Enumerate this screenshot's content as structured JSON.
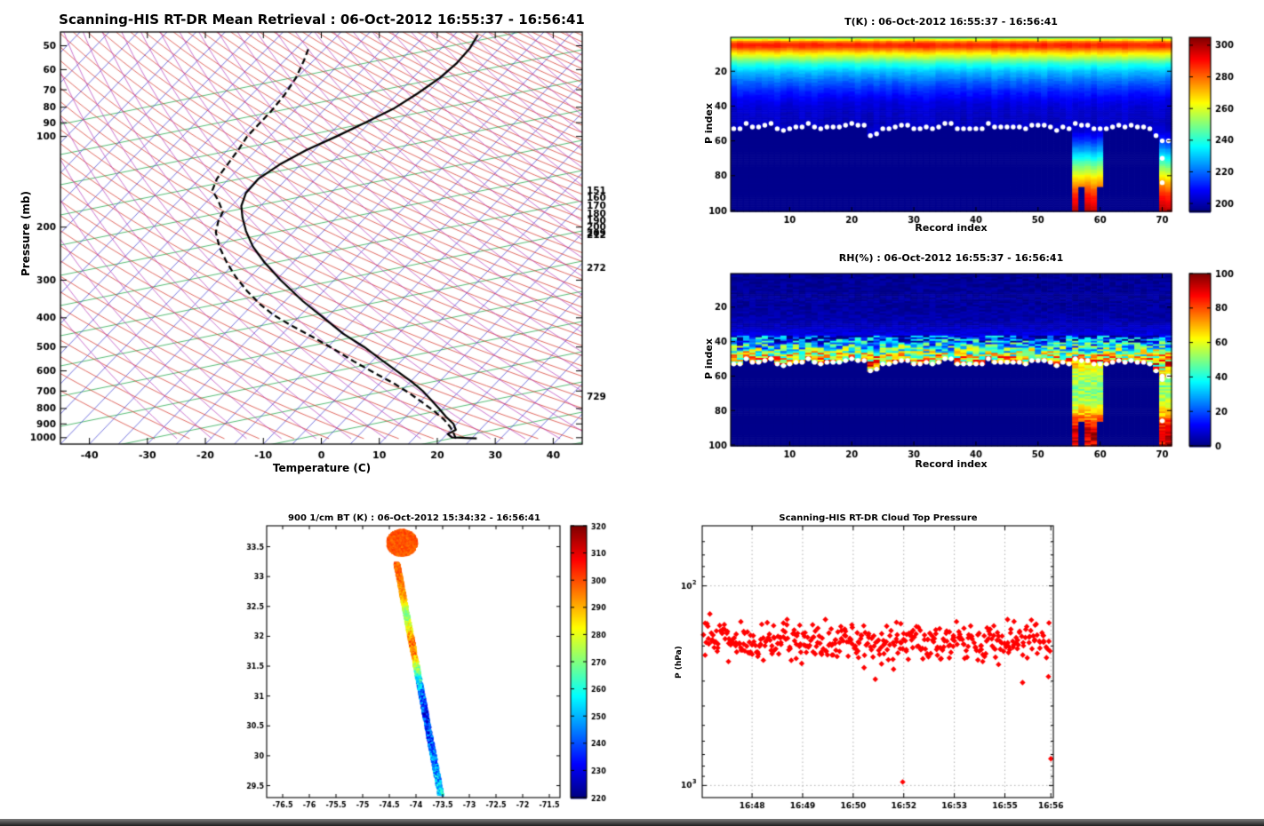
{
  "page": {
    "background": "#ffffff"
  },
  "chart_data": [
    {
      "id": "skewt",
      "type": "line",
      "title": "Scanning-HIS RT-DR Mean Retrieval : 06-Oct-2012 16:55:37 - 16:56:41",
      "xlabel": "Temperature (C)",
      "ylabel": "Pressure (mb)",
      "xlim": [
        -45,
        45
      ],
      "pressure_lim": [
        45,
        1050
      ],
      "x_ticks": [
        -40,
        -30,
        -20,
        -10,
        0,
        10,
        20,
        30,
        40
      ],
      "x_tick_labels": [
        "-40",
        "-30",
        "-20",
        "-10",
        "0",
        "10",
        "20",
        "30",
        "40"
      ],
      "p_ticks": [
        50,
        60,
        70,
        80,
        90,
        100,
        200,
        300,
        400,
        500,
        600,
        700,
        800,
        900,
        1000
      ],
      "p_tick_labels": [
        "50",
        "60",
        "70",
        "80",
        "90",
        "100",
        "200",
        "300",
        "400",
        "500",
        "600",
        "700",
        "800",
        "900",
        "1000"
      ],
      "right_levels": [
        151,
        160,
        170,
        180,
        190,
        200,
        209,
        212,
        272,
        729
      ],
      "right_level_labels": [
        "151",
        "160",
        "170",
        "180",
        "190",
        "200",
        "209",
        "212",
        "272",
        "729"
      ],
      "background": {
        "isotherm_color": "#3b3bd1",
        "isotherm_step_C": 5,
        "dry_adiabat_color": "#d42a1e",
        "moist_adiabat_color": "#b637b6",
        "mixing_line_color": "#11a03c",
        "skew_C_per_decade": 50
      },
      "series": [
        {
          "name": "temperature",
          "line": "solid",
          "color": "#000000",
          "points_T_p": [
            [
              26.8,
              1006
            ],
            [
              22.5,
              998
            ],
            [
              21.8,
              972
            ],
            [
              23.2,
              942
            ],
            [
              22.8,
              900
            ],
            [
              21.5,
              852
            ],
            [
              20.3,
              800
            ],
            [
              19,
              752
            ],
            [
              17.5,
              700
            ],
            [
              15.5,
              650
            ],
            [
              13,
              600
            ],
            [
              10.4,
              552
            ],
            [
              7.4,
              500
            ],
            [
              3.8,
              452
            ],
            [
              0.4,
              400
            ],
            [
              -3.2,
              352
            ],
            [
              -7,
              300
            ],
            [
              -9.8,
              262
            ],
            [
              -11.8,
              232
            ],
            [
              -13,
              206
            ],
            [
              -13.6,
              186
            ],
            [
              -13.8,
              170
            ],
            [
              -13,
              154
            ],
            [
              -10.8,
              138
            ],
            [
              -7.2,
              124
            ],
            [
              -2.6,
              111
            ],
            [
              2.6,
              100
            ],
            [
              7.6,
              90
            ],
            [
              12.4,
              81
            ],
            [
              16.6,
              72
            ],
            [
              20.4,
              64
            ],
            [
              23.4,
              57
            ],
            [
              25.6,
              51
            ],
            [
              27,
              46
            ]
          ]
        },
        {
          "name": "dew_point",
          "line": "dashed",
          "color": "#000000",
          "points_T_p": [
            [
              23.2,
              1006
            ],
            [
              22.8,
              965
            ],
            [
              22.2,
              920
            ],
            [
              21.2,
              872
            ],
            [
              19.6,
              820
            ],
            [
              17.6,
              768
            ],
            [
              15.4,
              716
            ],
            [
              12.6,
              662
            ],
            [
              9.2,
              610
            ],
            [
              5.6,
              558
            ],
            [
              2,
              506
            ],
            [
              -1.6,
              462
            ],
            [
              -5.2,
              424
            ],
            [
              -8.2,
              392
            ],
            [
              -10.6,
              360
            ],
            [
              -12.8,
              326
            ],
            [
              -14.8,
              292
            ],
            [
              -16.4,
              260
            ],
            [
              -17.6,
              232
            ],
            [
              -18.2,
              208
            ],
            [
              -17.8,
              192
            ],
            [
              -17,
              178
            ],
            [
              -17.8,
              163
            ],
            [
              -18.8,
              151
            ],
            [
              -18,
              138
            ],
            [
              -16.2,
              124
            ],
            [
              -14.2,
              110
            ],
            [
              -12.8,
              100
            ],
            [
              -11,
              92
            ],
            [
              -8.8,
              83
            ],
            [
              -6.4,
              73
            ],
            [
              -4.4,
              64
            ],
            [
              -3,
              56
            ],
            [
              -2.2,
              51
            ]
          ]
        }
      ]
    },
    {
      "id": "temperature_heatmap",
      "type": "heatmap",
      "title": "T(K) : 06-Oct-2012 16:55:37 - 16:56:41",
      "xlabel": "Record index",
      "ylabel": "P index",
      "xlim": [
        1,
        71
      ],
      "ylim_reversed": [
        1,
        100
      ],
      "x_ticks": [
        10,
        20,
        30,
        40,
        50,
        60,
        70
      ],
      "x_tick_labels": [
        "10",
        "20",
        "30",
        "40",
        "50",
        "60",
        "70"
      ],
      "y_ticks": [
        20,
        40,
        60,
        80,
        100
      ],
      "y_tick_labels": [
        "20",
        "40",
        "60",
        "80",
        "100"
      ],
      "colorbar": {
        "min": 195,
        "max": 305,
        "ticks": [
          200,
          220,
          240,
          260,
          280,
          300
        ],
        "tick_labels": [
          "200",
          "220",
          "240",
          "260",
          "280",
          "300"
        ]
      },
      "temperature_profile_K_vs_p_index": [
        [
          1,
          252
        ],
        [
          2,
          266
        ],
        [
          3,
          278
        ],
        [
          4,
          285
        ],
        [
          5,
          288
        ],
        [
          6,
          286
        ],
        [
          7,
          281
        ],
        [
          9,
          270
        ],
        [
          12,
          256
        ],
        [
          16,
          240
        ],
        [
          20,
          230
        ],
        [
          26,
          220
        ],
        [
          32,
          212
        ],
        [
          38,
          206
        ],
        [
          44,
          203
        ],
        [
          50,
          202
        ],
        [
          55,
          205
        ],
        [
          60,
          214
        ],
        [
          66,
          228
        ],
        [
          74,
          248
        ],
        [
          82,
          268
        ],
        [
          90,
          286
        ],
        [
          100,
          299
        ]
      ],
      "masked_value": 196.5,
      "cloud_top_p_index_base": 52,
      "cloud_top_overrides": {
        "3": 50,
        "23": 57,
        "24": 56,
        "69": 57,
        "70": 60,
        "71": 60
      },
      "clear_sky_records": [
        56,
        57,
        58,
        59,
        60,
        70,
        71
      ],
      "notch_records": [
        57,
        60
      ],
      "notch_below_index": 87,
      "extra_white_dots": [
        [
          70,
          70
        ],
        [
          70,
          84
        ]
      ],
      "dot_color": "#ffffff"
    },
    {
      "id": "rh_heatmap",
      "type": "heatmap",
      "title": "RH(%) : 06-Oct-2012 16:55:37 - 16:56:41",
      "xlabel": "Record index",
      "ylabel": "P index",
      "xlim": [
        1,
        71
      ],
      "ylim_reversed": [
        1,
        100
      ],
      "x_ticks": [
        10,
        20,
        30,
        40,
        50,
        60,
        70
      ],
      "x_tick_labels": [
        "10",
        "20",
        "30",
        "40",
        "50",
        "60",
        "70"
      ],
      "y_ticks": [
        20,
        40,
        60,
        80,
        100
      ],
      "y_tick_labels": [
        "20",
        "40",
        "60",
        "80",
        "100"
      ],
      "colorbar": {
        "min": 0,
        "max": 100,
        "ticks": [
          0,
          20,
          40,
          60,
          80,
          100
        ],
        "tick_labels": [
          "0",
          "20",
          "40",
          "60",
          "80",
          "100"
        ]
      },
      "rh_profile_pct_vs_p_index": [
        [
          1,
          2
        ],
        [
          20,
          3
        ],
        [
          30,
          5
        ],
        [
          36,
          10
        ],
        [
          40,
          25
        ],
        [
          44,
          40
        ],
        [
          47,
          55
        ],
        [
          50,
          65
        ],
        [
          53,
          68
        ],
        [
          56,
          62
        ],
        [
          60,
          55
        ],
        [
          66,
          50
        ],
        [
          72,
          52
        ],
        [
          78,
          60
        ],
        [
          83,
          72
        ],
        [
          88,
          85
        ],
        [
          93,
          95
        ],
        [
          100,
          90
        ]
      ],
      "speckle_band": [
        37,
        54
      ],
      "speckle_amp": 28,
      "clear_sky_records": [
        56,
        57,
        58,
        59,
        60,
        70,
        71
      ],
      "notch_records": [
        57,
        60
      ],
      "notch_below_index": 87,
      "extra_white_dots": [
        [
          70,
          62
        ],
        [
          70,
          86
        ]
      ],
      "dot_color": "#ffffff"
    },
    {
      "id": "bt_map",
      "type": "scatter",
      "title": "900 1/cm BT (K) : 06-Oct-2012 15:34:32 - 16:56:41",
      "xlim": [
        -76.8,
        -71.3
      ],
      "ylim": [
        29.3,
        33.85
      ],
      "x_ticks": [
        -76.5,
        -76,
        -75.5,
        -75,
        -74.5,
        -74,
        -73.5,
        -73,
        -72.5,
        -72,
        -71.5
      ],
      "x_tick_labels": [
        "-76.5",
        "-76",
        "-75.5",
        "-75",
        "-74.5",
        "-74",
        "-73.5",
        "-73",
        "-72.5",
        "-72",
        "-71.5"
      ],
      "y_ticks": [
        29.5,
        30,
        30.5,
        31,
        31.5,
        32,
        32.5,
        33,
        33.5
      ],
      "y_tick_labels": [
        "29.5",
        "30",
        "30.5",
        "31",
        "31.5",
        "32",
        "32.5",
        "33",
        "33.5"
      ],
      "colorbar": {
        "min": 220,
        "max": 320,
        "ticks": [
          220,
          230,
          240,
          250,
          260,
          270,
          280,
          290,
          300,
          310,
          320
        ],
        "tick_labels": [
          "220",
          "230",
          "240",
          "250",
          "260",
          "270",
          "280",
          "290",
          "300",
          "310",
          "320"
        ]
      },
      "flight_track": {
        "start_lon_lat": [
          -73.55,
          29.35
        ],
        "end_lon_lat": [
          -74.38,
          33.25
        ],
        "swath_width_deg": 0.1
      },
      "loop_cluster": {
        "center_lon_lat": [
          -74.28,
          33.58
        ],
        "radius_deg": 0.27,
        "bt_K": 299
      },
      "bt_K_vs_lat": [
        [
          29.35,
          252
        ],
        [
          29.8,
          247
        ],
        [
          30.2,
          240
        ],
        [
          30.7,
          236
        ],
        [
          31.1,
          243
        ],
        [
          31.45,
          268
        ],
        [
          31.7,
          292
        ],
        [
          31.95,
          296
        ],
        [
          32.15,
          283
        ],
        [
          32.4,
          268
        ],
        [
          32.65,
          290
        ],
        [
          33.0,
          297
        ],
        [
          33.3,
          299
        ]
      ],
      "bt_noise_K_by_lat": [
        [
          31.3,
          13
        ],
        [
          32.3,
          9
        ],
        [
          99,
          5
        ]
      ]
    },
    {
      "id": "cloud_top_pressure",
      "type": "scatter",
      "title": "Scanning-HIS RT-DR Cloud Top Pressure",
      "ylabel": "P (hPa)",
      "y_scale": "log",
      "ylim_hPa": [
        50,
        1150
      ],
      "y_major_ticks": [
        {
          "value": 100,
          "base": "10",
          "exp": "2"
        },
        {
          "value": 1000,
          "base": "10",
          "exp": "3"
        }
      ],
      "y_minor_ticks": [
        60,
        70,
        80,
        90,
        200,
        300,
        400,
        500,
        600,
        700,
        800,
        900
      ],
      "x_tick_labels": [
        "16:48",
        "16:49",
        "16:50",
        "16:52",
        "16:53",
        "16:55",
        "16:56"
      ],
      "points": {
        "count": 430,
        "band_center_hPa": 188,
        "band_log_spread": 0.18
      },
      "outliers_frac_p": [
        [
          0.571,
          960
        ],
        [
          0.986,
          285
        ],
        [
          0.993,
          735
        ]
      ],
      "marker": {
        "shape": "diamond",
        "color": "#ff0000"
      }
    }
  ]
}
